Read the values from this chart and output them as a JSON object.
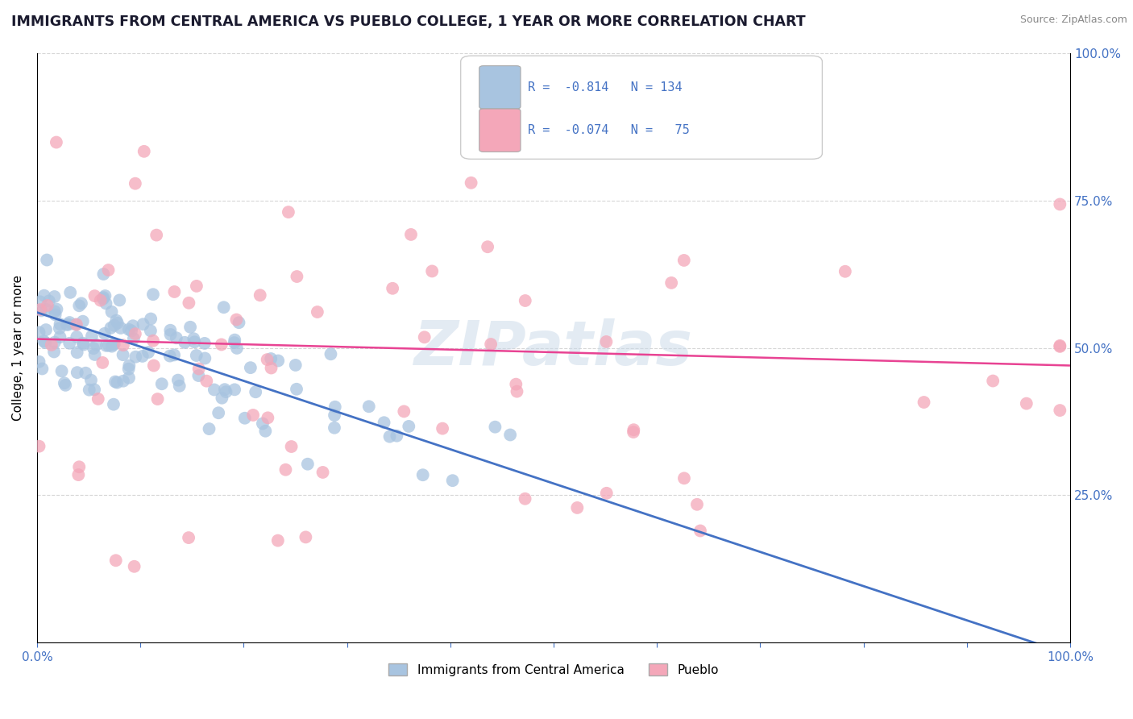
{
  "title": "IMMIGRANTS FROM CENTRAL AMERICA VS PUEBLO COLLEGE, 1 YEAR OR MORE CORRELATION CHART",
  "source_text": "Source: ZipAtlas.com",
  "ylabel": "College, 1 year or more",
  "xlim": [
    0.0,
    1.0
  ],
  "ylim": [
    0.0,
    1.0
  ],
  "ytick_labels": [
    "25.0%",
    "50.0%",
    "75.0%",
    "100.0%"
  ],
  "ytick_positions": [
    0.25,
    0.5,
    0.75,
    1.0
  ],
  "color_blue": "#a8c4e0",
  "color_blue_line": "#4472c4",
  "color_pink": "#f4a7b9",
  "color_pink_line": "#e84393",
  "watermark": "ZIPatlas",
  "blue_line_x": [
    0.0,
    1.0
  ],
  "blue_line_y": [
    0.56,
    -0.02
  ],
  "pink_line_x": [
    0.0,
    1.0
  ],
  "pink_line_y": [
    0.515,
    0.47
  ],
  "grid_color": "#cccccc",
  "background_color": "#ffffff",
  "legend_text1": "R =  -0.814   N = 134",
  "legend_text2": "R =  -0.074   N =   75"
}
